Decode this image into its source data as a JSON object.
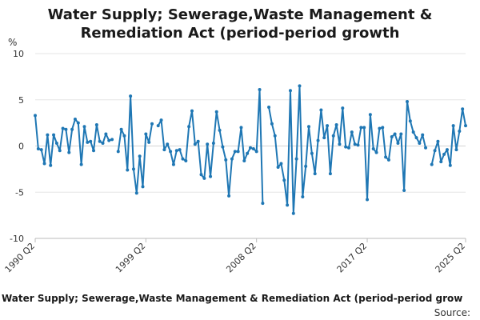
{
  "chart_data": {
    "type": "line",
    "title": [
      "Water Supply; Sewerage,Waste Management &",
      "Remediation Act (period-period growth"
    ],
    "ylabel": "%",
    "ylim": [
      -10,
      10
    ],
    "yticks": [
      -10,
      -5,
      0,
      5,
      10
    ],
    "grid": true,
    "xtick_labels": [
      "1990 Q2",
      "1999 Q2",
      "2008 Q2",
      "2017 Q2",
      "2025 Q2"
    ],
    "xtick_indices": [
      0,
      36,
      72,
      108,
      140
    ],
    "color": "#1f77b4",
    "series": [
      {
        "name": "Water Supply; Sewerage,Waste Management & Remediation Act (period-period grow",
        "values": [
          3.3,
          -0.3,
          -0.4,
          -1.9,
          1.2,
          -2.1,
          1.2,
          0.3,
          -0.5,
          1.9,
          1.8,
          -0.7,
          1.8,
          2.9,
          2.5,
          -2.0,
          2.1,
          0.4,
          0.5,
          -0.5,
          2.3,
          0.5,
          0.3,
          1.3,
          0.6,
          0.7,
          null,
          -0.6,
          1.8,
          1.1,
          -2.6,
          5.4,
          -2.5,
          -5.1,
          -1.1,
          -4.4,
          1.3,
          0.4,
          2.4,
          null,
          2.2,
          2.8,
          -0.4,
          0.2,
          -0.6,
          -2.0,
          -0.5,
          -0.4,
          -1.4,
          -1.6,
          2.1,
          3.8,
          0.2,
          0.5,
          -3.1,
          -3.5,
          0.2,
          -3.3,
          0.3,
          3.7,
          1.7,
          -0.1,
          -1.5,
          -5.4,
          -1.4,
          -0.6,
          -0.6,
          2.0,
          -1.6,
          -0.8,
          -0.2,
          -0.3,
          -0.6,
          6.1,
          -6.2,
          null,
          4.2,
          2.4,
          1.1,
          -2.3,
          -1.9,
          -3.7,
          -6.4,
          6.0,
          -7.3,
          -1.4,
          6.5,
          -5.5,
          -2.2,
          2.1,
          -0.8,
          -3.0,
          0.6,
          3.9,
          0.9,
          2.2,
          -3.0,
          1.1,
          2.3,
          0.2,
          4.1,
          -0.1,
          -0.2,
          1.5,
          0.2,
          0.1,
          2.0,
          2.0,
          -5.8,
          3.4,
          -0.3,
          -0.7,
          1.9,
          2.0,
          -1.2,
          -1.5,
          1.0,
          1.3,
          0.3,
          1.3,
          -4.8,
          4.8,
          2.7,
          1.5,
          0.9,
          0.3,
          1.2,
          -0.2,
          null,
          -2.0,
          -0.5,
          0.5,
          -1.7,
          -0.9,
          -0.4,
          -2.1,
          2.2,
          -0.4,
          1.6,
          4.0,
          2.2
        ]
      }
    ]
  },
  "legend": {
    "label": "Water Supply; Sewerage,Waste Management & Remediation Act (period-period grow"
  },
  "source": {
    "label": "Source:"
  }
}
